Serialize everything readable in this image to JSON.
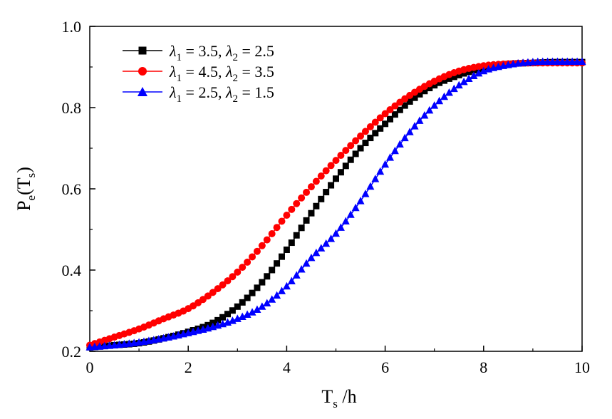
{
  "chart_data": {
    "type": "line",
    "xlabel": {
      "main": "T",
      "sub": "s",
      "suffix": " /h"
    },
    "ylabel": {
      "main": "P",
      "sub1": "e",
      "mid": "(T",
      "sub2": "s",
      "end": ")"
    },
    "xlim": [
      0,
      10
    ],
    "ylim": [
      0.2,
      1.0
    ],
    "x_ticks": [
      "0",
      "2",
      "4",
      "6",
      "8",
      "10"
    ],
    "y_ticks": [
      "0.2",
      "0.4",
      "0.6",
      "0.8",
      "1.0"
    ],
    "grid": false,
    "legend_position": "top-left",
    "series": [
      {
        "name": "λ1 = 3.5, λ2 = 2.5",
        "legend": {
          "lam1": "3.5",
          "lam2": "2.5"
        },
        "color": "#000000",
        "marker": "square",
        "x": [
          0,
          0.5,
          1,
          1.5,
          2,
          2.5,
          3,
          3.5,
          4,
          4.5,
          5,
          5.5,
          6,
          6.5,
          7,
          7.5,
          8,
          8.5,
          9,
          9.5,
          10
        ],
        "y": [
          0.21,
          0.215,
          0.22,
          0.232,
          0.248,
          0.27,
          0.31,
          0.37,
          0.45,
          0.54,
          0.625,
          0.7,
          0.76,
          0.815,
          0.855,
          0.88,
          0.898,
          0.907,
          0.91,
          0.912,
          0.912
        ]
      },
      {
        "name": "λ1 = 4.5, λ2 = 3.5",
        "legend": {
          "lam1": "4.5",
          "lam2": "3.5"
        },
        "color": "#ff0000",
        "marker": "circle",
        "x": [
          0,
          0.5,
          1,
          1.5,
          2,
          2.5,
          3,
          3.5,
          4,
          4.5,
          5,
          5.5,
          6,
          6.5,
          7,
          7.5,
          8,
          8.5,
          9,
          9.5,
          10
        ],
        "y": [
          0.215,
          0.235,
          0.255,
          0.28,
          0.305,
          0.345,
          0.395,
          0.46,
          0.535,
          0.605,
          0.67,
          0.73,
          0.785,
          0.83,
          0.865,
          0.89,
          0.903,
          0.908,
          0.91,
          0.91,
          0.91
        ]
      },
      {
        "name": "λ1 = 2.5, λ2 = 1.5",
        "legend": {
          "lam1": "2.5",
          "lam2": "1.5"
        },
        "color": "#0000ff",
        "marker": "triangle",
        "x": [
          0,
          0.5,
          1,
          1.5,
          2,
          2.5,
          3,
          3.5,
          4,
          4.5,
          5,
          5.5,
          6,
          6.5,
          7,
          7.5,
          8,
          8.5,
          9,
          9.5,
          10
        ],
        "y": [
          0.21,
          0.215,
          0.222,
          0.232,
          0.245,
          0.26,
          0.28,
          0.31,
          0.36,
          0.43,
          0.49,
          0.57,
          0.66,
          0.74,
          0.805,
          0.855,
          0.89,
          0.905,
          0.912,
          0.913,
          0.913
        ]
      }
    ]
  }
}
